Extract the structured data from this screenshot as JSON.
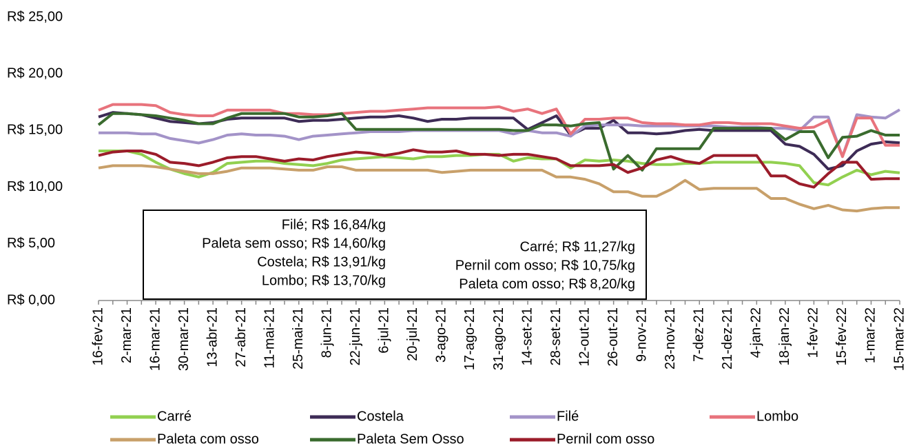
{
  "chart_data": {
    "type": "line",
    "categories": [
      "16-fev-21",
      null,
      "2-mar-21",
      null,
      "16-mar-21",
      null,
      "30-mar-21",
      null,
      "13-abr-21",
      null,
      "27-abr-21",
      null,
      "11-mai-21",
      null,
      "25-mai-21",
      null,
      "8-jun-21",
      null,
      "22-jun-21",
      null,
      "6-jul-21",
      null,
      "20-jul-21",
      null,
      "3-ago-21",
      null,
      "17-ago-21",
      null,
      "31-ago-21",
      null,
      "14-set-21",
      null,
      "28-set-21",
      null,
      "12-out-21",
      null,
      "26-out-21",
      null,
      "9-nov-21",
      null,
      "23-nov-21",
      null,
      "7-dez-21",
      null,
      "21-dez-21",
      null,
      "4-jan-22",
      null,
      "18-jan-22",
      null,
      "1-fev-22",
      null,
      "15-fev-22",
      null,
      "1-mar-22",
      null,
      "15-mar-22"
    ],
    "series": [
      {
        "name": "Carré",
        "color": "#92d050",
        "values": [
          13.2,
          13.2,
          13.2,
          12.9,
          12.2,
          11.6,
          11.2,
          10.9,
          11.3,
          12.1,
          12.2,
          12.3,
          12.3,
          12.1,
          12.0,
          11.9,
          12.1,
          12.4,
          12.5,
          12.6,
          12.7,
          12.6,
          12.5,
          12.7,
          12.7,
          12.8,
          12.8,
          12.9,
          12.9,
          12.3,
          12.6,
          12.5,
          12.5,
          11.7,
          12.4,
          12.3,
          12.4,
          12.3,
          12.1,
          12.0,
          12.0,
          12.1,
          12.1,
          12.2,
          12.2,
          12.2,
          12.2,
          12.2,
          12.1,
          11.9,
          10.4,
          10.2,
          10.9,
          11.5,
          11.1,
          11.4,
          11.27
        ]
      },
      {
        "name": "Costela",
        "color": "#3d2b56",
        "values": [
          16.2,
          16.6,
          16.5,
          16.4,
          16.1,
          15.8,
          15.7,
          15.6,
          15.7,
          16.0,
          16.1,
          16.1,
          16.1,
          16.1,
          15.8,
          15.9,
          15.9,
          16.0,
          16.1,
          16.2,
          16.2,
          16.3,
          16.1,
          15.8,
          16.0,
          16.0,
          16.1,
          16.1,
          16.1,
          16.1,
          15.1,
          15.7,
          16.3,
          14.6,
          15.2,
          15.2,
          15.9,
          14.8,
          14.8,
          14.7,
          14.8,
          15.0,
          15.1,
          15.0,
          15.0,
          15.0,
          15.0,
          15.0,
          13.8,
          13.6,
          12.9,
          11.6,
          11.9,
          13.2,
          13.8,
          14.0,
          13.91
        ]
      },
      {
        "name": "Filé",
        "color": "#a393c8",
        "values": [
          14.8,
          14.8,
          14.8,
          14.7,
          14.7,
          14.3,
          14.1,
          13.9,
          14.2,
          14.6,
          14.7,
          14.6,
          14.6,
          14.5,
          14.2,
          14.5,
          14.6,
          14.7,
          14.8,
          14.9,
          14.9,
          14.9,
          15.0,
          15.0,
          15.0,
          15.0,
          15.0,
          15.0,
          15.0,
          14.7,
          15.0,
          14.8,
          14.8,
          14.5,
          15.4,
          15.5,
          15.5,
          15.5,
          15.4,
          15.4,
          15.4,
          15.4,
          15.4,
          15.4,
          15.3,
          15.3,
          15.3,
          15.2,
          15.2,
          15.0,
          16.2,
          16.2,
          12.7,
          16.4,
          16.2,
          16.1,
          16.84
        ]
      },
      {
        "name": "Lombo",
        "color": "#e8737c",
        "values": [
          16.8,
          17.3,
          17.3,
          17.3,
          17.2,
          16.6,
          16.4,
          16.3,
          16.3,
          16.8,
          16.8,
          16.8,
          16.8,
          16.5,
          16.5,
          16.4,
          16.4,
          16.5,
          16.6,
          16.7,
          16.7,
          16.8,
          16.9,
          17.0,
          17.0,
          17.0,
          17.0,
          17.0,
          17.1,
          16.7,
          16.9,
          16.5,
          16.9,
          14.7,
          16.0,
          16.0,
          16.1,
          16.1,
          15.7,
          15.6,
          15.6,
          15.5,
          15.5,
          15.7,
          15.7,
          15.6,
          15.6,
          15.6,
          15.4,
          15.2,
          15.3,
          15.9,
          12.7,
          16.1,
          16.1,
          13.7,
          13.7
        ]
      },
      {
        "name": "Paleta com osso",
        "color": "#c8a06a",
        "values": [
          11.7,
          11.9,
          11.9,
          11.9,
          11.8,
          11.6,
          11.4,
          11.2,
          11.2,
          11.4,
          11.7,
          11.7,
          11.7,
          11.6,
          11.5,
          11.5,
          11.8,
          11.8,
          11.5,
          11.5,
          11.5,
          11.5,
          11.5,
          11.5,
          11.3,
          11.4,
          11.5,
          11.5,
          11.5,
          11.5,
          11.5,
          11.5,
          10.9,
          10.9,
          10.7,
          10.3,
          9.6,
          9.6,
          9.2,
          9.2,
          9.8,
          10.6,
          9.8,
          9.9,
          9.9,
          9.9,
          9.9,
          9.0,
          9.0,
          8.5,
          8.1,
          8.4,
          8.0,
          7.9,
          8.1,
          8.2,
          8.2
        ]
      },
      {
        "name": "Paleta Sem Osso",
        "color": "#3a6b2e",
        "values": [
          15.5,
          16.5,
          16.5,
          16.4,
          16.3,
          16.1,
          15.9,
          15.6,
          15.6,
          16.1,
          16.5,
          16.5,
          16.5,
          16.5,
          16.2,
          16.2,
          16.3,
          16.5,
          15.1,
          15.1,
          15.1,
          15.1,
          15.1,
          15.1,
          15.1,
          15.1,
          15.1,
          15.1,
          15.1,
          15.0,
          15.0,
          15.5,
          15.5,
          15.4,
          15.6,
          15.7,
          11.6,
          12.8,
          11.5,
          13.4,
          13.4,
          13.4,
          13.4,
          15.2,
          15.2,
          15.2,
          15.2,
          15.2,
          14.2,
          14.9,
          14.9,
          12.6,
          14.4,
          14.5,
          15.0,
          14.6,
          14.6
        ]
      },
      {
        "name": "Pernil com osso",
        "color": "#9b1c2a",
        "values": [
          12.8,
          13.1,
          13.2,
          13.2,
          12.9,
          12.2,
          12.1,
          11.9,
          12.2,
          12.6,
          12.7,
          12.7,
          12.5,
          12.3,
          12.5,
          12.4,
          12.7,
          12.9,
          13.1,
          13.0,
          12.8,
          13.0,
          13.3,
          13.1,
          13.1,
          13.2,
          12.9,
          12.9,
          12.8,
          12.9,
          12.9,
          12.7,
          12.5,
          11.9,
          11.9,
          11.9,
          12.0,
          11.3,
          11.7,
          12.4,
          12.7,
          12.3,
          12.1,
          12.8,
          12.8,
          12.8,
          12.8,
          11.0,
          11.0,
          10.3,
          10.0,
          11.2,
          12.2,
          12.2,
          10.7,
          10.75,
          10.75
        ]
      }
    ],
    "ylim": [
      0,
      25
    ],
    "yticks": [
      {
        "value": 0,
        "label": "R$ 0,00"
      },
      {
        "value": 5,
        "label": "R$ 5,00"
      },
      {
        "value": 10,
        "label": "R$ 10,00"
      },
      {
        "value": 15,
        "label": "R$ 15,00"
      },
      {
        "value": 20,
        "label": "R$ 20,00"
      },
      {
        "value": 25,
        "label": "R$ 25,00"
      }
    ],
    "grid": false,
    "legend": "bottom",
    "annotations": [
      "Filé; R$ 16,84/kg",
      "Paleta sem osso; R$ 14,60/kg",
      "Costela; R$ 13,91/kg",
      "Lombo; R$ 13,70/kg",
      "Carré; R$ 11,27/kg",
      "Pernil com osso; R$ 10,75/kg",
      "Paleta com osso; R$ 8,20/kg"
    ]
  }
}
